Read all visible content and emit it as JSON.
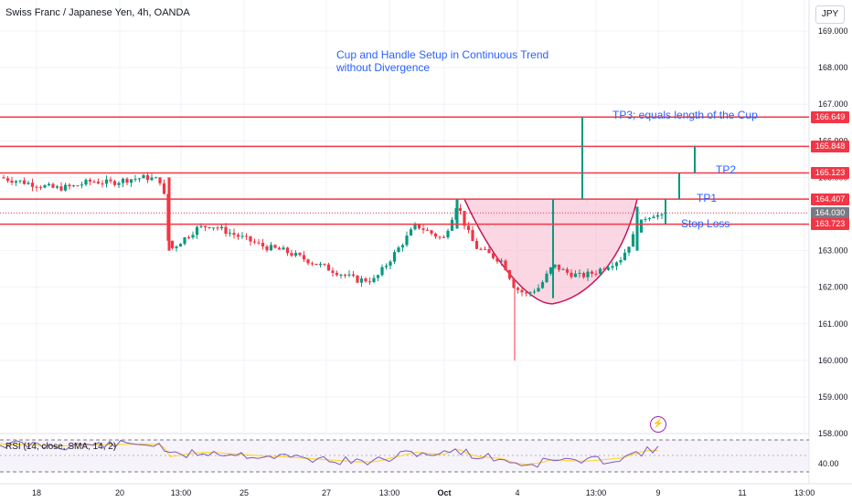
{
  "header": {
    "symbol": "Swiss Franc / Japanese Yen, 4h, OANDA",
    "currency": "JPY"
  },
  "annotations": {
    "title_line1": "Cup and Handle Setup in Continuous Trend",
    "title_line2": "without Divergence",
    "tp3": "TP3; equals length of the Cup",
    "tp2": "TP2",
    "tp1": "TP1",
    "stop_loss": "Stop Loss"
  },
  "price_axis": {
    "ticks": [
      "169.000",
      "168.000",
      "167.000",
      "166.000",
      "165.000",
      "164.000",
      "163.000",
      "162.000",
      "161.000",
      "160.000",
      "159.000",
      "158.000"
    ],
    "tags": [
      {
        "label": "166.649",
        "style": "red"
      },
      {
        "label": "165.848",
        "style": "red"
      },
      {
        "label": "165.123",
        "style": "red"
      },
      {
        "label": "164.407",
        "style": "red"
      },
      {
        "label": "164.030",
        "style": "gray"
      },
      {
        "label": "163.723",
        "style": "red"
      }
    ]
  },
  "time_axis": {
    "labels": [
      "18",
      "20",
      "13:00",
      "25",
      "27",
      "13:00",
      "Oct",
      "4",
      "13:00",
      "9",
      "11",
      "13:00"
    ]
  },
  "rsi": {
    "label": "RSI (14, close, SMA, 14, 2)",
    "tick": "40.00"
  },
  "colors": {
    "up": "#089981",
    "down": "#f23645",
    "level_line": "#f23645",
    "cup_fill": "#f8bbd0",
    "cup_stroke": "#c2185b",
    "annotation": "#2962ff",
    "rsi_line": "#7e57c2",
    "rsi_ma": "#fdd835"
  },
  "chart_data": {
    "type": "candlestick",
    "title": "Swiss Franc / Japanese Yen, 4h, OANDA",
    "levels": [
      166.649,
      165.848,
      165.123,
      164.407,
      163.723
    ],
    "last_price": 164.03,
    "ylim": [
      158.0,
      169.5
    ]
  }
}
